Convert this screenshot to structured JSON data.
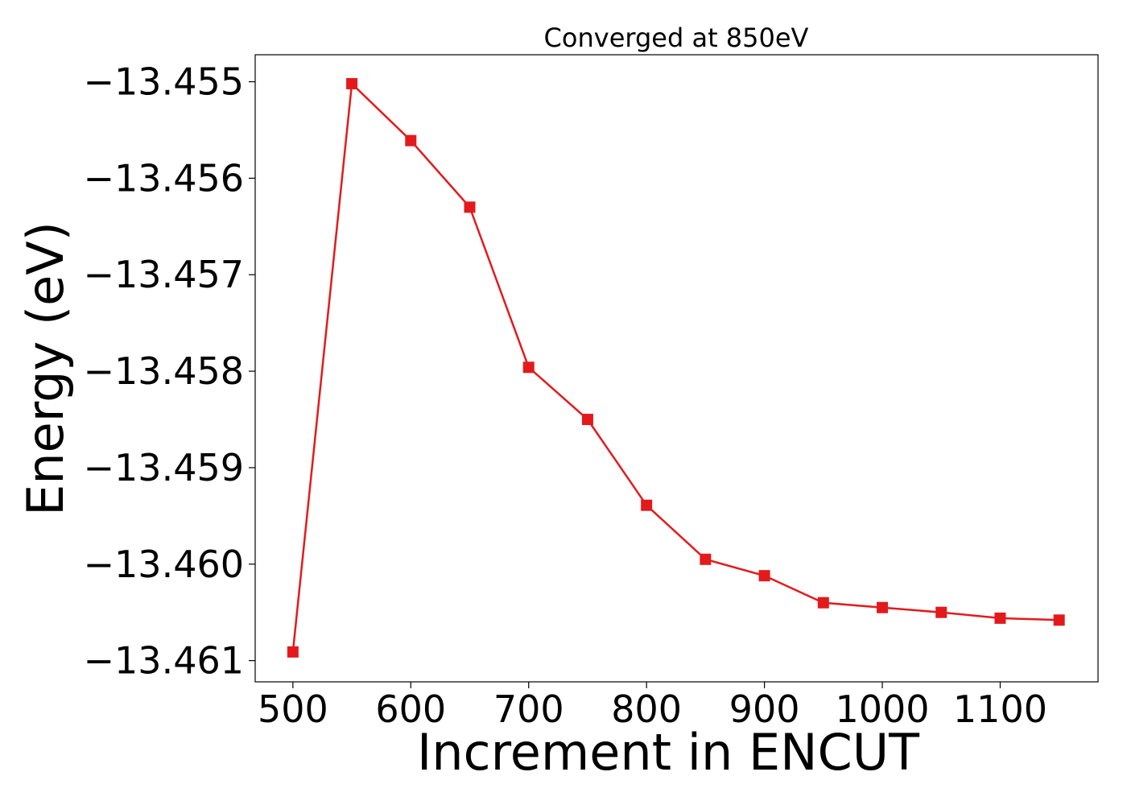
{
  "chart_data": {
    "type": "line",
    "title": "Converged at 850eV",
    "xlabel": "Increment in ENCUT",
    "ylabel": "Energy (eV)",
    "x": [
      500,
      550,
      600,
      650,
      700,
      750,
      800,
      850,
      900,
      950,
      1000,
      1050,
      1100,
      1150
    ],
    "series": [
      {
        "values": [
          -13.46091,
          -13.45502,
          -13.45561,
          -13.4563,
          -13.45796,
          -13.4585,
          -13.45939,
          -13.45995,
          -13.46012,
          -13.4604,
          -13.46045,
          -13.4605,
          -13.46056,
          -13.46058
        ],
        "color": "#e31a1c",
        "marker": "square"
      }
    ],
    "xlim": [
      468,
      1183
    ],
    "ylim": [
      -13.46122,
      -13.45472
    ],
    "xticks": [
      500,
      600,
      700,
      800,
      900,
      1000,
      1100
    ],
    "xtick_labels": [
      "500",
      "600",
      "700",
      "800",
      "900",
      "1000",
      "1100"
    ],
    "yticks": [
      -13.455,
      -13.456,
      -13.457,
      -13.458,
      -13.459,
      -13.46,
      -13.461
    ],
    "ytick_labels": [
      "−13.455",
      "−13.456",
      "−13.457",
      "−13.458",
      "−13.459",
      "−13.460",
      "−13.461"
    ],
    "grid": false,
    "legend": "none"
  }
}
